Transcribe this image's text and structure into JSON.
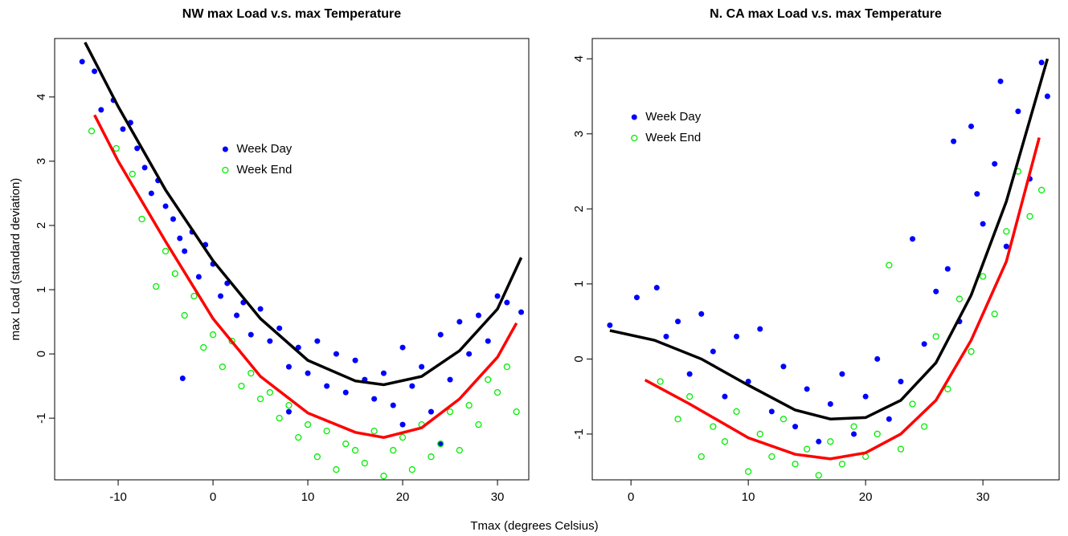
{
  "chart_data": [
    {
      "type": "scatter",
      "title": "NW max Load v.s. max Temperature",
      "ylabel": "max Load (standard deviation)",
      "xlim": [
        -16.7,
        33.3
      ],
      "ylim": [
        -1.96,
        4.91
      ],
      "xticks": [
        -10,
        0,
        10,
        20,
        30
      ],
      "yticks": [
        -1,
        0,
        1,
        2,
        3,
        4
      ],
      "legend": "top",
      "series": [
        {
          "name": "Week Day",
          "color": "#0000ff",
          "filled": true,
          "x": [
            -13.8,
            -12.5,
            -11.8,
            -10.5,
            -9.5,
            -8.7,
            -8,
            -7.2,
            -6.5,
            -5.8,
            -5,
            -4.2,
            -3.5,
            -3,
            -2.2,
            -1.5,
            -0.8,
            0,
            0.8,
            1.5,
            2.5,
            3.2,
            4,
            5,
            6,
            7,
            8,
            9,
            10,
            11,
            12,
            13,
            14,
            15,
            16,
            17,
            18,
            19,
            20,
            21,
            22,
            23,
            24,
            25,
            26,
            27,
            28,
            29,
            30,
            31,
            32.5,
            -3.2,
            8,
            20,
            24
          ],
          "values": [
            4.55,
            4.4,
            3.8,
            3.95,
            3.5,
            3.6,
            3.2,
            2.9,
            2.5,
            2.7,
            2.3,
            2.1,
            1.8,
            1.6,
            1.9,
            1.2,
            1.7,
            1.4,
            0.9,
            1.1,
            0.6,
            0.8,
            0.3,
            0.7,
            0.2,
            0.4,
            -0.2,
            0.1,
            -0.3,
            0.2,
            -0.5,
            0,
            -0.6,
            -0.1,
            -0.4,
            -0.7,
            -0.3,
            -0.8,
            0.1,
            -0.5,
            -0.2,
            -0.9,
            0.3,
            -0.4,
            0.5,
            0,
            0.6,
            0.2,
            0.9,
            0.8,
            0.65,
            -0.38,
            -0.9,
            -1.1,
            -1.4
          ]
        },
        {
          "name": "Week End",
          "color": "#00ee00",
          "filled": false,
          "x": [
            -12.8,
            -10.2,
            -8.5,
            -7.5,
            -6,
            -5,
            -4,
            -3,
            -2,
            -1,
            0,
            1,
            2,
            3,
            4,
            5,
            6,
            7,
            8,
            9,
            10,
            11,
            12,
            13,
            14,
            15,
            16,
            17,
            18,
            19,
            20,
            21,
            22,
            23,
            24,
            25,
            26,
            27,
            28,
            29,
            30,
            31,
            32
          ],
          "values": [
            3.47,
            3.2,
            2.8,
            2.1,
            1.05,
            1.6,
            1.25,
            0.6,
            0.9,
            0.1,
            0.3,
            -0.2,
            0.2,
            -0.5,
            -0.3,
            -0.7,
            -0.6,
            -1.0,
            -0.8,
            -1.3,
            -1.1,
            -1.6,
            -1.2,
            -1.8,
            -1.4,
            -1.5,
            -1.7,
            -1.2,
            -1.9,
            -1.5,
            -1.3,
            -1.8,
            -1.1,
            -1.6,
            -1.4,
            -0.9,
            -1.5,
            -0.8,
            -1.1,
            -0.4,
            -0.6,
            -0.2,
            -0.9
          ]
        }
      ],
      "curves": [
        {
          "color": "#000000",
          "x": [
            -13.5,
            -10,
            -5,
            0,
            5,
            10,
            15,
            18,
            22,
            26,
            30,
            32.5
          ],
          "values": [
            4.85,
            3.85,
            2.55,
            1.45,
            0.55,
            -0.1,
            -0.42,
            -0.48,
            -0.35,
            0.05,
            0.7,
            1.5
          ]
        },
        {
          "color": "#ff0000",
          "x": [
            -12.5,
            -10,
            -5,
            0,
            5,
            10,
            15,
            18,
            22,
            26,
            30,
            32
          ],
          "values": [
            3.72,
            3.0,
            1.75,
            0.55,
            -0.35,
            -0.92,
            -1.22,
            -1.3,
            -1.15,
            -0.7,
            -0.05,
            0.48
          ]
        }
      ]
    },
    {
      "type": "scatter",
      "title": "N. CA max Load v.s. max Temperature",
      "xlim": [
        -3.3,
        36.5
      ],
      "ylim": [
        -1.61,
        4.27
      ],
      "xticks": [
        0,
        10,
        20,
        30
      ],
      "yticks": [
        -1,
        0,
        1,
        2,
        3,
        4
      ],
      "legend": "top-left",
      "series": [
        {
          "name": "Week Day",
          "color": "#0000ff",
          "filled": true,
          "x": [
            -1.8,
            0.5,
            2.2,
            3,
            4,
            5,
            6,
            7,
            8,
            9,
            10,
            11,
            12,
            13,
            14,
            15,
            16,
            17,
            18,
            19,
            20,
            21,
            22,
            23,
            24,
            25,
            26,
            27,
            28,
            29,
            30,
            31,
            32,
            33,
            34,
            35,
            35.5,
            29.5,
            27.5,
            31.5
          ],
          "values": [
            0.45,
            0.82,
            0.95,
            0.3,
            0.5,
            -0.2,
            0.6,
            0.1,
            -0.5,
            0.3,
            -0.3,
            0.4,
            -0.7,
            -0.1,
            -0.9,
            -0.4,
            -1.1,
            -0.6,
            -0.2,
            -1.0,
            -0.5,
            0.0,
            -0.8,
            -0.3,
            1.6,
            0.2,
            0.9,
            1.2,
            0.5,
            3.1,
            1.8,
            2.6,
            1.5,
            3.3,
            2.4,
            3.95,
            3.5,
            2.2,
            2.9,
            3.7
          ]
        },
        {
          "name": "Week End",
          "color": "#00ee00",
          "filled": false,
          "x": [
            2.5,
            4,
            5,
            6,
            7,
            8,
            9,
            10,
            11,
            12,
            13,
            14,
            15,
            16,
            17,
            18,
            19,
            20,
            21,
            22,
            23,
            24,
            25,
            26,
            27,
            28,
            29,
            30,
            31,
            32,
            33,
            34,
            35
          ],
          "values": [
            -0.3,
            -0.8,
            -0.5,
            -1.3,
            -0.9,
            -1.1,
            -0.7,
            -1.5,
            -1.0,
            -1.3,
            -0.8,
            -1.4,
            -1.2,
            -1.55,
            -1.1,
            -1.4,
            -0.9,
            -1.3,
            -1.0,
            1.25,
            -1.2,
            -0.6,
            -0.9,
            0.3,
            -0.4,
            0.8,
            0.1,
            1.1,
            0.6,
            1.7,
            2.5,
            1.9,
            2.25
          ]
        }
      ],
      "curves": [
        {
          "color": "#000000",
          "x": [
            -1.8,
            2,
            6,
            10,
            14,
            17,
            20,
            23,
            26,
            29,
            32,
            35.5
          ],
          "values": [
            0.38,
            0.25,
            0,
            -0.35,
            -0.68,
            -0.8,
            -0.78,
            -0.55,
            -0.05,
            0.85,
            2.1,
            4.0
          ]
        },
        {
          "color": "#ff0000",
          "x": [
            1.2,
            5,
            10,
            14,
            17,
            20,
            23,
            26,
            29,
            32,
            34.8
          ],
          "values": [
            -0.28,
            -0.6,
            -1.05,
            -1.27,
            -1.33,
            -1.25,
            -1.0,
            -0.55,
            0.25,
            1.3,
            2.95
          ]
        }
      ]
    }
  ],
  "xlabel": "Tmax (degrees Celsius)"
}
